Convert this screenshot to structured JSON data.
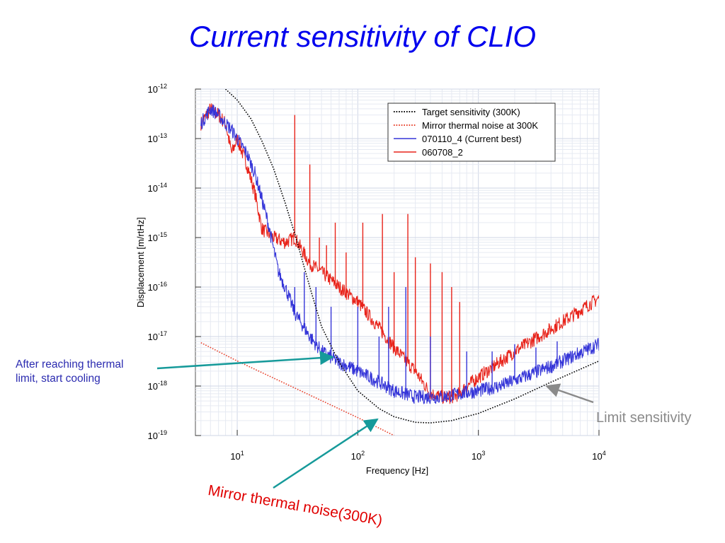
{
  "slide": {
    "title": "Current sensitivity of CLIO"
  },
  "annotations": {
    "thermal_limit_line1": "After reaching thermal",
    "thermal_limit_line2": "limit, start cooling",
    "limit_sensitivity": "Limit sensitivity",
    "mirror_thermal": "Mirror thermal noise(300K)"
  },
  "colors": {
    "target": "#000000",
    "mirror": "#e8402a",
    "current_best": "#3535d8",
    "old": "#e8231a",
    "arrow_teal": "#169a9a",
    "arrow_gray": "#8a8a8a"
  },
  "chart_data": {
    "type": "line",
    "xlabel": "Frequency [Hz]",
    "ylabel": "Displacement [m/rtHz]",
    "xscale": "log",
    "yscale": "log",
    "xlim": [
      4.5,
      10000
    ],
    "ylim": [
      1e-19,
      1e-12
    ],
    "grid": true,
    "legend_position": "top-right",
    "x_ticks": [
      {
        "value": 10,
        "base": "10",
        "exp": "1"
      },
      {
        "value": 100,
        "base": "10",
        "exp": "2"
      },
      {
        "value": 1000,
        "base": "10",
        "exp": "3"
      },
      {
        "value": 10000,
        "base": "10",
        "exp": "4"
      }
    ],
    "y_ticks": [
      {
        "value": 1e-12,
        "base": "10",
        "exp": "-12"
      },
      {
        "value": 1e-13,
        "base": "10",
        "exp": "-13"
      },
      {
        "value": 1e-14,
        "base": "10",
        "exp": "-14"
      },
      {
        "value": 1e-15,
        "base": "10",
        "exp": "-15"
      },
      {
        "value": 1e-16,
        "base": "10",
        "exp": "-16"
      },
      {
        "value": 1e-17,
        "base": "10",
        "exp": "-17"
      },
      {
        "value": 1e-18,
        "base": "10",
        "exp": "-18"
      },
      {
        "value": 1e-19,
        "base": "10",
        "exp": "-19"
      }
    ],
    "series": [
      {
        "name": "Target sensitivity (300K)",
        "style": "dotted",
        "color": "#000000",
        "x": [
          8,
          10,
          13,
          16,
          20,
          25,
          30,
          40,
          50,
          70,
          100,
          150,
          200,
          300,
          400,
          600,
          1000,
          2000,
          4000,
          10000
        ],
        "y": [
          1e-12,
          6e-13,
          2.5e-13,
          9e-14,
          2.5e-14,
          5e-15,
          1.2e-15,
          1e-16,
          1.6e-17,
          3e-18,
          8e-19,
          3.5e-19,
          2.4e-19,
          1.85e-19,
          1.8e-19,
          2e-19,
          2.8e-19,
          5.5e-19,
          1.2e-18,
          3.2e-18
        ]
      },
      {
        "name": "Mirror thermal noise at 300K",
        "style": "dotted",
        "color": "#e8402a",
        "x": [
          5,
          10,
          100,
          200
        ],
        "y": [
          7.5e-18,
          3.2e-18,
          2.3e-19,
          1e-19
        ]
      },
      {
        "name": "070110_4 (Current best)",
        "style": "solid",
        "color": "#3535d8",
        "x": [
          5,
          6,
          7,
          8,
          9,
          10,
          11,
          12,
          14,
          16,
          18,
          20,
          22,
          25,
          30,
          40,
          50,
          70,
          100,
          150,
          200,
          300,
          400,
          500,
          700,
          1000,
          1500,
          2000,
          4000,
          10000
        ],
        "y": [
          2e-13,
          4e-13,
          3e-13,
          2e-13,
          1.5e-13,
          1e-13,
          7e-14,
          5e-14,
          2e-14,
          6e-15,
          2e-15,
          6e-16,
          2e-16,
          1e-16,
          3e-17,
          1e-17,
          5e-18,
          3e-18,
          2e-18,
          1.2e-18,
          8e-19,
          6e-19,
          6e-19,
          6e-19,
          7e-19,
          8e-19,
          1e-18,
          1.3e-18,
          2.5e-18,
          7e-18
        ],
        "peaks": [
          {
            "x": 13,
            "y": 3e-14
          },
          {
            "x": 30,
            "y": 1e-16
          },
          {
            "x": 36,
            "y": 2e-16
          },
          {
            "x": 45,
            "y": 1e-16
          },
          {
            "x": 60,
            "y": 4e-17
          },
          {
            "x": 100,
            "y": 4e-17
          },
          {
            "x": 150,
            "y": 1e-17
          },
          {
            "x": 180,
            "y": 4e-17
          },
          {
            "x": 250,
            "y": 1e-16
          },
          {
            "x": 400,
            "y": 1e-17
          },
          {
            "x": 800,
            "y": 5e-18
          },
          {
            "x": 1300,
            "y": 5e-18
          },
          {
            "x": 2000,
            "y": 7e-18
          },
          {
            "x": 3000,
            "y": 6e-18
          },
          {
            "x": 4500,
            "y": 8e-18
          }
        ]
      },
      {
        "name": "060708_2",
        "style": "solid",
        "color": "#e8231a",
        "x": [
          5,
          6,
          7,
          8,
          9,
          10,
          12,
          14,
          16,
          20,
          25,
          30,
          40,
          50,
          70,
          100,
          150,
          200,
          300,
          400,
          500,
          600,
          700,
          800,
          1000,
          2000,
          5000,
          10000
        ],
        "y": [
          2e-13,
          4e-13,
          3e-13,
          2e-13,
          5e-14,
          1e-13,
          3e-14,
          8e-15,
          1.5e-15,
          1e-15,
          8e-16,
          1e-15,
          3e-16,
          2e-16,
          1e-16,
          5e-17,
          1.5e-17,
          6e-18,
          2e-18,
          7e-19,
          6e-19,
          6e-19,
          7e-19,
          1e-18,
          1.5e-18,
          5e-18,
          2e-17,
          6e-17
        ],
        "peaks": [
          {
            "x": 30,
            "y": 3e-13
          },
          {
            "x": 40,
            "y": 3e-14
          },
          {
            "x": 48,
            "y": 1e-15
          },
          {
            "x": 55,
            "y": 7e-16
          },
          {
            "x": 65,
            "y": 2e-15
          },
          {
            "x": 80,
            "y": 5e-16
          },
          {
            "x": 110,
            "y": 2e-15
          },
          {
            "x": 160,
            "y": 3e-15
          },
          {
            "x": 200,
            "y": 2e-16
          },
          {
            "x": 260,
            "y": 3e-15
          },
          {
            "x": 300,
            "y": 4e-16
          },
          {
            "x": 400,
            "y": 3e-16
          },
          {
            "x": 500,
            "y": 2e-16
          },
          {
            "x": 600,
            "y": 1e-16
          },
          {
            "x": 700,
            "y": 5e-17
          }
        ]
      }
    ]
  }
}
